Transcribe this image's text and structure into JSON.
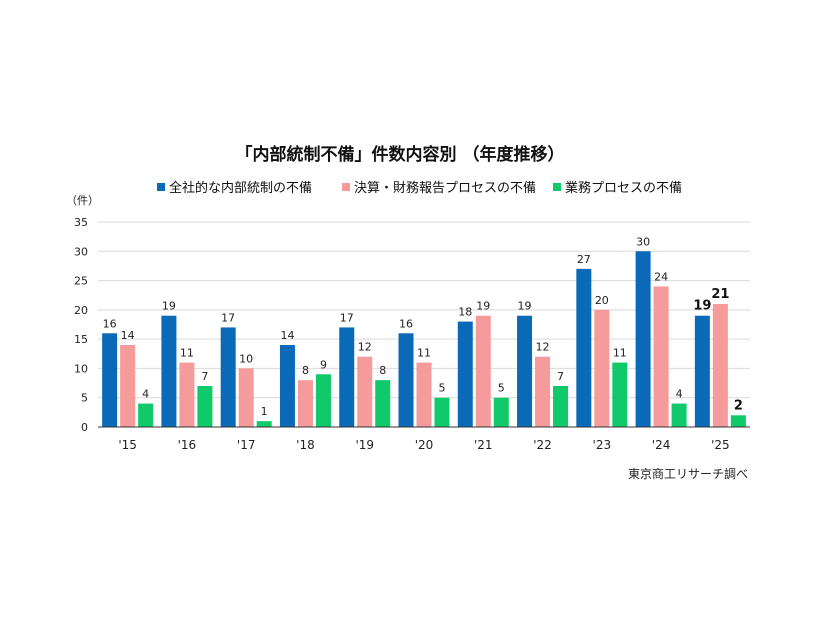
{
  "chart_data": {
    "type": "bar",
    "title": "「内部統制不備」件数内容別 （年度推移）",
    "ylabel": "（件）",
    "source": "東京商工リサーチ調べ",
    "ylim": [
      0,
      35
    ],
    "yticks": [
      0,
      5,
      10,
      15,
      20,
      25,
      30,
      35
    ],
    "grid": true,
    "legend_position": "top",
    "categories": [
      "'15",
      "'16",
      "'17",
      "'18",
      "'19",
      "'20",
      "'21",
      "'22",
      "'23",
      "'24",
      "'25"
    ],
    "series": [
      {
        "name": "全社的な内部統制の不備",
        "color": "#0b6ab8",
        "values": [
          16,
          19,
          17,
          14,
          17,
          16,
          18,
          19,
          27,
          30,
          19
        ]
      },
      {
        "name": "決算・財務報告プロセスの不備",
        "color": "#f59b9b",
        "values": [
          14,
          11,
          10,
          8,
          12,
          11,
          19,
          12,
          20,
          24,
          21
        ]
      },
      {
        "name": "業務プロセスの不備",
        "color": "#10c96a",
        "values": [
          4,
          7,
          1,
          9,
          8,
          5,
          5,
          7,
          11,
          4,
          2
        ]
      }
    ],
    "emphasized_category": "'25"
  }
}
